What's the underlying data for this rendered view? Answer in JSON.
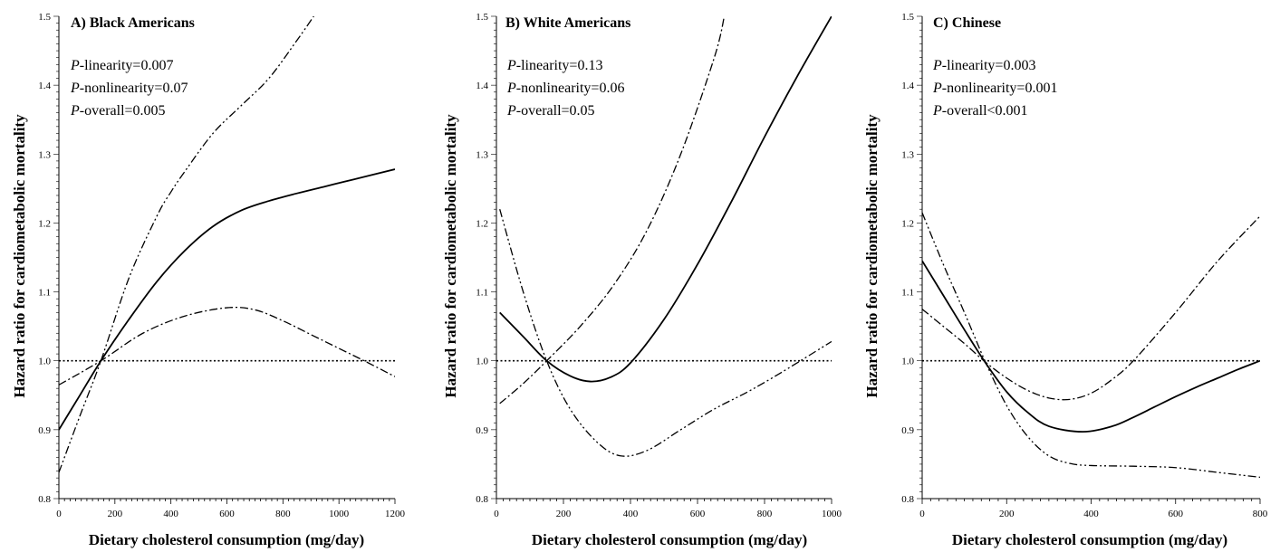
{
  "figure": {
    "ylabel": "Hazard ratio for cardiometabolic mortality",
    "xlabel": "Dietary cholesterol consumption (mg/day)"
  },
  "chart_data": [
    {
      "type": "line",
      "title": "A) Black Americans",
      "xlabel": "Dietary cholesterol consumption (mg/day)",
      "ylabel": "Hazard ratio for cardiometabolic mortality",
      "xlim": [
        0,
        1200
      ],
      "ylim": [
        0.8,
        1.5
      ],
      "xticks": [
        0,
        200,
        400,
        600,
        800,
        1000,
        1200
      ],
      "yticks": [
        0.8,
        0.9,
        1.0,
        1.1,
        1.2,
        1.3,
        1.4,
        1.5
      ],
      "ytick_labels": [
        "0.8",
        "0.9",
        "1.0",
        "1.1",
        "1.2",
        "1.3",
        "1.4",
        "1.5"
      ],
      "reference_line": 1.0,
      "stats": [
        {
          "prefix": "P",
          "text": "-linearity=0.007"
        },
        {
          "prefix": "P",
          "text": "-nonlinearity=0.07"
        },
        {
          "prefix": "P",
          "text": "-overall=0.005"
        }
      ],
      "series": [
        {
          "style": "solid",
          "x": [
            0,
            75,
            150,
            250,
            350,
            450,
            550,
            650,
            750,
            850,
            950,
            1050,
            1200
          ],
          "y": [
            0.9,
            0.95,
            1.0,
            1.06,
            1.115,
            1.16,
            1.195,
            1.218,
            1.232,
            1.243,
            1.253,
            1.263,
            1.278
          ]
        },
        {
          "style": "dash-dot",
          "x": [
            0,
            150,
            300,
            450,
            600,
            700,
            800,
            900,
            1000,
            1100,
            1200
          ],
          "y": [
            0.965,
            1.0,
            1.04,
            1.065,
            1.077,
            1.074,
            1.058,
            1.038,
            1.018,
            0.998,
            0.977
          ]
        },
        {
          "style": "dash-dot-dot",
          "x": [
            0,
            75,
            150,
            250,
            350,
            400,
            450,
            550,
            650,
            750,
            850,
            910
          ],
          "y": [
            0.838,
            0.92,
            1.0,
            1.12,
            1.21,
            1.245,
            1.275,
            1.33,
            1.37,
            1.41,
            1.465,
            1.5
          ]
        }
      ]
    },
    {
      "type": "line",
      "title": "B) White Americans",
      "xlabel": "Dietary cholesterol consumption (mg/day)",
      "ylabel": "Hazard ratio for cardiometabolic mortality",
      "xlim": [
        0,
        1000
      ],
      "ylim": [
        0.8,
        1.5
      ],
      "xticks": [
        0,
        200,
        400,
        600,
        800,
        1000
      ],
      "yticks": [
        0.8,
        0.9,
        1.0,
        1.1,
        1.2,
        1.3,
        1.4,
        1.5
      ],
      "ytick_labels": [
        "0.8",
        "0.9",
        "1.0",
        "1.1",
        "1.2",
        "1.3",
        "1.4",
        "1.5"
      ],
      "reference_line": 1.0,
      "stats": [
        {
          "prefix": "P",
          "text": "-linearity=0.13"
        },
        {
          "prefix": "P",
          "text": "-nonlinearity=0.06"
        },
        {
          "prefix": "P",
          "text": "-overall=0.05"
        }
      ],
      "series": [
        {
          "style": "solid",
          "x": [
            10,
            80,
            150,
            220,
            280,
            340,
            400,
            500,
            600,
            700,
            800,
            900,
            1000
          ],
          "y": [
            1.07,
            1.035,
            1.0,
            0.978,
            0.97,
            0.976,
            0.997,
            1.06,
            1.14,
            1.23,
            1.325,
            1.415,
            1.5
          ]
        },
        {
          "style": "dash-dot",
          "x": [
            10,
            80,
            150,
            250,
            350,
            450,
            550,
            650,
            680
          ],
          "y": [
            0.938,
            0.967,
            1.0,
            1.05,
            1.11,
            1.19,
            1.3,
            1.44,
            1.5
          ]
        },
        {
          "style": "dash-dot-dot",
          "x": [
            10,
            80,
            150,
            220,
            300,
            370,
            450,
            550,
            650,
            750,
            850,
            1000
          ],
          "y": [
            1.22,
            1.1,
            1.0,
            0.93,
            0.882,
            0.862,
            0.87,
            0.9,
            0.93,
            0.955,
            0.983,
            1.028
          ]
        }
      ]
    },
    {
      "type": "line",
      "title": "C) Chinese",
      "xlabel": "Dietary cholesterol consumption (mg/day)",
      "ylabel": "Hazard ratio for cardiometabolic mortality",
      "xlim": [
        0,
        800
      ],
      "ylim": [
        0.8,
        1.5
      ],
      "xticks": [
        0,
        200,
        400,
        600,
        800
      ],
      "yticks": [
        0.8,
        0.9,
        1.0,
        1.1,
        1.2,
        1.3,
        1.4,
        1.5
      ],
      "ytick_labels": [
        "0.8",
        "0.9",
        "1.0",
        "1.1",
        "1.2",
        "1.3",
        "1.4",
        "1.5"
      ],
      "reference_line": 1.0,
      "stats": [
        {
          "prefix": "P",
          "text": "-linearity=0.003"
        },
        {
          "prefix": "P",
          "text": "-nonlinearity=0.001"
        },
        {
          "prefix": "P",
          "text": "-overall<0.001"
        }
      ],
      "series": [
        {
          "style": "solid",
          "x": [
            0,
            50,
            100,
            150,
            200,
            250,
            300,
            380,
            450,
            500,
            550,
            600,
            650,
            700,
            750,
            800
          ],
          "y": [
            1.145,
            1.095,
            1.045,
            0.997,
            0.955,
            0.925,
            0.905,
            0.897,
            0.905,
            0.918,
            0.933,
            0.948,
            0.962,
            0.975,
            0.988,
            1.0
          ]
        },
        {
          "style": "dash-dot",
          "x": [
            0,
            50,
            100,
            150,
            200,
            250,
            300,
            350,
            400,
            450,
            500,
            600,
            700,
            800
          ],
          "y": [
            1.075,
            1.05,
            1.025,
            0.998,
            0.975,
            0.957,
            0.946,
            0.944,
            0.953,
            0.973,
            1.0,
            1.07,
            1.145,
            1.21
          ]
        },
        {
          "style": "dash-dot-dot",
          "x": [
            0,
            50,
            100,
            150,
            200,
            250,
            300,
            350,
            400,
            500,
            600,
            700,
            800
          ],
          "y": [
            1.215,
            1.14,
            1.07,
            0.998,
            0.935,
            0.89,
            0.862,
            0.851,
            0.848,
            0.847,
            0.845,
            0.838,
            0.831
          ]
        }
      ]
    }
  ]
}
